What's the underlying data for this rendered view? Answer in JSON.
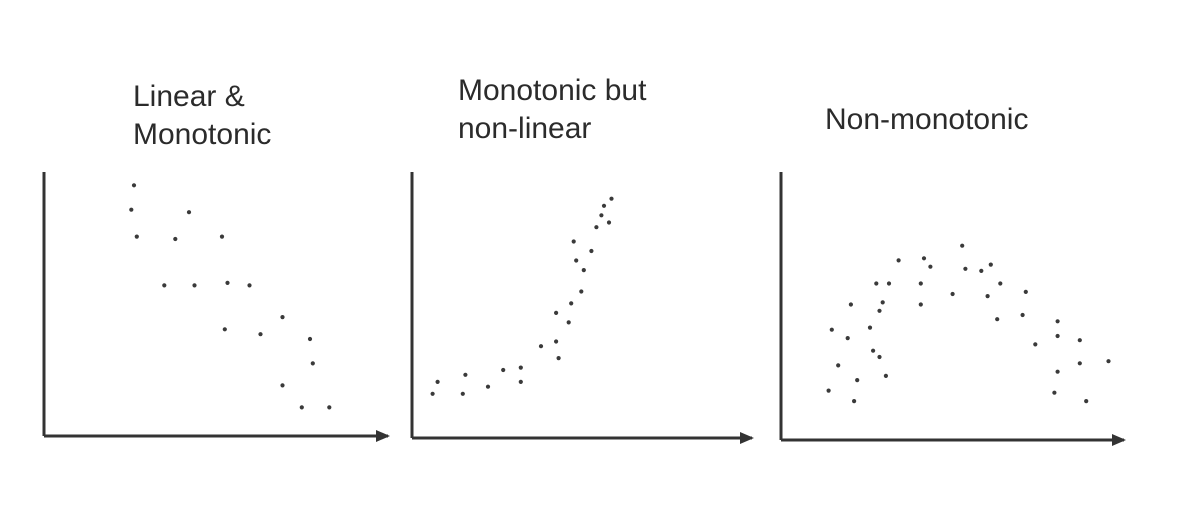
{
  "colors": {
    "ink": "#333333",
    "dot": "#3a3a3a",
    "background": "#ffffff"
  },
  "chart_data": [
    {
      "type": "scatter",
      "title_lines": [
        "Linear &",
        "Monotonic"
      ],
      "xlabel": "",
      "ylabel": "",
      "xlim": [
        0,
        100
      ],
      "ylim": [
        0,
        100
      ],
      "grid": false,
      "points": [
        [
          16,
          97
        ],
        [
          15,
          87
        ],
        [
          36,
          86
        ],
        [
          17,
          76
        ],
        [
          31,
          75
        ],
        [
          48,
          76
        ],
        [
          27,
          56
        ],
        [
          38,
          56
        ],
        [
          50,
          57
        ],
        [
          58,
          56
        ],
        [
          49,
          38
        ],
        [
          62,
          36
        ],
        [
          70,
          43
        ],
        [
          80,
          34
        ],
        [
          81,
          24
        ],
        [
          70,
          15
        ],
        [
          77,
          6
        ],
        [
          87,
          6
        ]
      ]
    },
    {
      "type": "scatter",
      "title_lines": [
        "Monotonic but",
        "non-linear"
      ],
      "xlabel": "",
      "ylabel": "",
      "xlim": [
        0,
        100
      ],
      "ylim": [
        0,
        100
      ],
      "grid": false,
      "points": [
        [
          7,
          16
        ],
        [
          5,
          11
        ],
        [
          18,
          19
        ],
        [
          17,
          11
        ],
        [
          27,
          14
        ],
        [
          33,
          21
        ],
        [
          40,
          22
        ],
        [
          40,
          16
        ],
        [
          48,
          31
        ],
        [
          54,
          33
        ],
        [
          55,
          26
        ],
        [
          54,
          45
        ],
        [
          60,
          49
        ],
        [
          59,
          41
        ],
        [
          64,
          54
        ],
        [
          65,
          63
        ],
        [
          61,
          75
        ],
        [
          62,
          67
        ],
        [
          68,
          71
        ],
        [
          70,
          81
        ],
        [
          73,
          90
        ],
        [
          72,
          86
        ],
        [
          76,
          93
        ],
        [
          75,
          83
        ]
      ]
    },
    {
      "type": "scatter",
      "title_lines": [
        "Non-monotonic"
      ],
      "xlabel": "",
      "ylabel": "",
      "xlim": [
        0,
        100
      ],
      "ylim": [
        0,
        100
      ],
      "grid": false,
      "points": [
        [
          10,
          43
        ],
        [
          9,
          14
        ],
        [
          12,
          26
        ],
        [
          15,
          39
        ],
        [
          16,
          55
        ],
        [
          17,
          9
        ],
        [
          18,
          19
        ],
        [
          22,
          44
        ],
        [
          23,
          33
        ],
        [
          24,
          65
        ],
        [
          25,
          52
        ],
        [
          25,
          30
        ],
        [
          26,
          56
        ],
        [
          27,
          21
        ],
        [
          28,
          65
        ],
        [
          31,
          76
        ],
        [
          38,
          65
        ],
        [
          38,
          55
        ],
        [
          39,
          77
        ],
        [
          41,
          73
        ],
        [
          48,
          60
        ],
        [
          51,
          83
        ],
        [
          52,
          72
        ],
        [
          57,
          71
        ],
        [
          59,
          59
        ],
        [
          60,
          74
        ],
        [
          62,
          48
        ],
        [
          63,
          65
        ],
        [
          70,
          50
        ],
        [
          71,
          61
        ],
        [
          74,
          36
        ],
        [
          81,
          47
        ],
        [
          81,
          40
        ],
        [
          81,
          23
        ],
        [
          80,
          13
        ],
        [
          88,
          38
        ],
        [
          88,
          27
        ],
        [
          90,
          9
        ],
        [
          97,
          28
        ]
      ]
    }
  ]
}
